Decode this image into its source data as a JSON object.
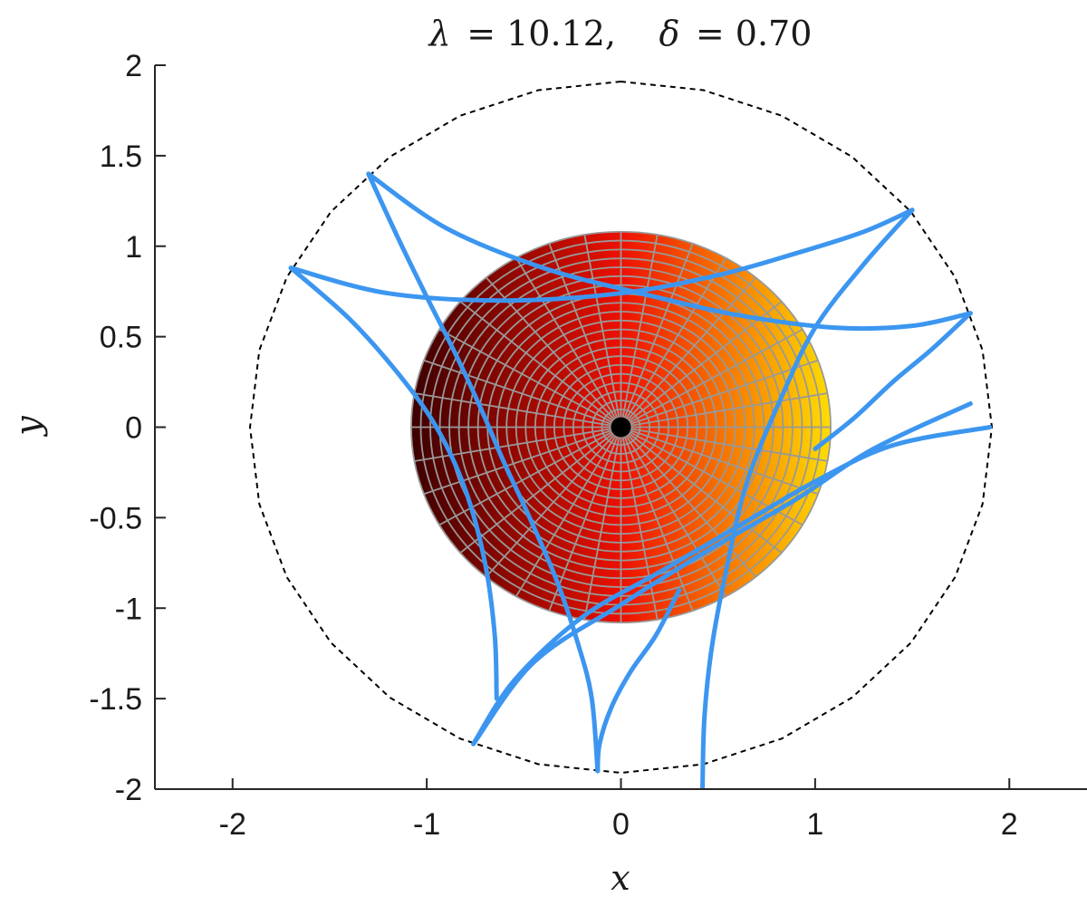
{
  "chart_data": {
    "type": "line",
    "title": {
      "lambda_symbol": "λ",
      "lambda_value": "= 10.12,",
      "delta_symbol": "δ",
      "delta_value": "= 0.70"
    },
    "xlabel": "x",
    "ylabel": "y",
    "xlim": [
      -2.4,
      2.4
    ],
    "ylim": [
      -2,
      2
    ],
    "x_ticks": [
      -2,
      -1,
      0,
      1,
      2
    ],
    "x_tick_labels": [
      "-2",
      "-1",
      "0",
      "1",
      "2"
    ],
    "y_ticks": [
      -2,
      -1.5,
      -1,
      -0.5,
      0,
      0.5,
      1,
      1.5,
      2
    ],
    "y_tick_labels": [
      "-2",
      "-1.5",
      "-1",
      "-0.5",
      "0",
      "0.5",
      "1",
      "1.5",
      "2"
    ],
    "grid": false,
    "colors": {
      "curves": "#3c96f0",
      "mesh_lines": "#999999",
      "boundary": "#000000",
      "center_dot": "#000000",
      "disk_left": "#3d0000",
      "disk_middle": "#ee1100",
      "disk_right": "#ffe000"
    },
    "boundary": {
      "style": "dashed",
      "radius": 1.91,
      "sides": 28
    },
    "disk": {
      "center": [
        0,
        0
      ],
      "radius": 1.08,
      "rings": 22,
      "spokes": 36,
      "colormap": "hot, by x"
    },
    "center_dot": [
      0,
      0
    ],
    "series": [
      {
        "points": [
          [
            -1.3,
            1.4
          ],
          [
            -1.15,
            1.05
          ],
          [
            -1.0,
            0.72
          ],
          [
            -0.85,
            0.4
          ],
          [
            -0.72,
            0.1
          ],
          [
            -0.6,
            -0.2
          ],
          [
            -0.47,
            -0.5
          ],
          [
            -0.33,
            -0.85
          ],
          [
            -0.22,
            -1.2
          ],
          [
            -0.15,
            -1.5
          ],
          [
            -0.12,
            -1.9
          ]
        ]
      },
      {
        "points": [
          [
            -1.3,
            1.4
          ],
          [
            -0.9,
            1.1
          ],
          [
            -0.4,
            0.88
          ],
          [
            0.1,
            0.74
          ],
          [
            0.6,
            0.62
          ],
          [
            1.1,
            0.55
          ],
          [
            1.5,
            0.56
          ],
          [
            1.8,
            0.63
          ]
        ]
      },
      {
        "points": [
          [
            -1.7,
            0.88
          ],
          [
            -1.2,
            0.74
          ],
          [
            -0.6,
            0.7
          ],
          [
            0.0,
            0.74
          ],
          [
            0.5,
            0.84
          ],
          [
            0.9,
            0.96
          ],
          [
            1.25,
            1.08
          ],
          [
            1.5,
            1.2
          ]
        ]
      },
      {
        "points": [
          [
            -1.7,
            0.88
          ],
          [
            -1.4,
            0.6
          ],
          [
            -1.15,
            0.3
          ],
          [
            -0.95,
            0.0
          ],
          [
            -0.8,
            -0.35
          ],
          [
            -0.7,
            -0.75
          ],
          [
            -0.65,
            -1.15
          ],
          [
            -0.64,
            -1.5
          ]
        ]
      },
      {
        "points": [
          [
            -0.76,
            -1.75
          ],
          [
            -0.55,
            -1.4
          ],
          [
            -0.2,
            -1.05
          ],
          [
            0.2,
            -0.8
          ],
          [
            0.6,
            -0.55
          ],
          [
            1.0,
            -0.3
          ],
          [
            1.4,
            -0.1
          ],
          [
            1.9,
            0.0
          ]
        ]
      },
      {
        "points": [
          [
            -0.76,
            -1.75
          ],
          [
            -0.45,
            -1.3
          ],
          [
            0.0,
            -0.98
          ],
          [
            0.45,
            -0.68
          ],
          [
            0.9,
            -0.4
          ],
          [
            1.3,
            -0.12
          ],
          [
            1.8,
            0.13
          ]
        ]
      },
      {
        "points": [
          [
            -0.12,
            -1.9
          ],
          [
            -0.11,
            -1.75
          ],
          [
            -0.05,
            -1.55
          ],
          [
            0.05,
            -1.35
          ],
          [
            0.18,
            -1.15
          ],
          [
            0.3,
            -0.9
          ]
        ]
      },
      {
        "points": [
          [
            1.5,
            1.2
          ],
          [
            1.25,
            0.9
          ],
          [
            1.0,
            0.55
          ],
          [
            0.82,
            0.15
          ],
          [
            0.65,
            -0.3
          ],
          [
            0.55,
            -0.75
          ],
          [
            0.47,
            -1.2
          ],
          [
            0.43,
            -1.6
          ],
          [
            0.42,
            -2.0
          ]
        ]
      },
      {
        "points": [
          [
            1.8,
            0.63
          ],
          [
            1.6,
            0.43
          ],
          [
            1.4,
            0.25
          ],
          [
            1.2,
            0.05
          ],
          [
            1.0,
            -0.12
          ]
        ]
      }
    ]
  }
}
